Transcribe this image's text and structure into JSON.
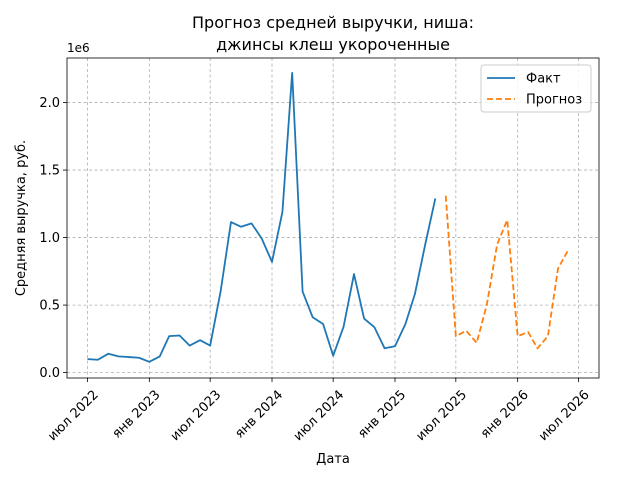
{
  "chart_data": {
    "type": "line",
    "title_lines": [
      "Прогноз средней выручки, ниша:",
      "джинсы клеш укороченные"
    ],
    "xlabel": "Дата",
    "ylabel": "Средняя выручка, руб.",
    "y_offset_label": "1e6",
    "ylim": [
      -0.04,
      2.33
    ],
    "y_ticks": [
      0.0,
      0.5,
      1.0,
      1.5,
      2.0
    ],
    "y_tick_labels": [
      "0.0",
      "0.5",
      "1.0",
      "1.5",
      "2.0"
    ],
    "x_range": [
      "2022-05-01",
      "2026-08-31"
    ],
    "x_ticks": [
      "2022-07-01",
      "2023-01-01",
      "2023-07-01",
      "2024-01-01",
      "2024-07-01",
      "2025-01-01",
      "2025-07-01",
      "2026-01-01",
      "2026-07-01"
    ],
    "x_tick_labels": [
      "июл 2022",
      "янв 2023",
      "июл 2023",
      "янв 2024",
      "июл 2024",
      "янв 2025",
      "июл 2025",
      "янв 2026",
      "июл 2026"
    ],
    "grid": true,
    "legend_position": "top-right",
    "series": [
      {
        "name": "Факт",
        "color": "#1f77b4",
        "style": "solid",
        "x": [
          "2022-07-01",
          "2022-08-01",
          "2022-09-01",
          "2022-10-01",
          "2022-11-01",
          "2022-12-01",
          "2023-01-01",
          "2023-02-01",
          "2023-03-01",
          "2023-04-01",
          "2023-05-01",
          "2023-06-01",
          "2023-07-01",
          "2023-08-01",
          "2023-09-01",
          "2023-10-01",
          "2023-11-01",
          "2023-12-01",
          "2024-01-01",
          "2024-02-01",
          "2024-03-01",
          "2024-04-01",
          "2024-05-01",
          "2024-06-01",
          "2024-07-01",
          "2024-08-01",
          "2024-09-01",
          "2024-10-01",
          "2024-11-01",
          "2024-12-01",
          "2025-01-01",
          "2025-02-01",
          "2025-03-01",
          "2025-04-01",
          "2025-05-01"
        ],
        "values": [
          0.1,
          0.095,
          0.14,
          0.12,
          0.115,
          0.11,
          0.08,
          0.12,
          0.27,
          0.275,
          0.2,
          0.24,
          0.2,
          0.6,
          1.115,
          1.08,
          1.105,
          0.995,
          0.82,
          1.19,
          2.22,
          0.6,
          0.41,
          0.36,
          0.125,
          0.34,
          0.73,
          0.4,
          0.335,
          0.18,
          0.195,
          0.36,
          0.58,
          0.95,
          1.29
        ]
      },
      {
        "name": "Прогноз",
        "color": "#ff7f0e",
        "style": "dashed",
        "x": [
          "2025-06-01",
          "2025-07-01",
          "2025-08-01",
          "2025-09-01",
          "2025-10-01",
          "2025-11-01",
          "2025-12-01",
          "2026-01-01",
          "2026-02-01",
          "2026-03-01",
          "2026-04-01",
          "2026-05-01",
          "2026-06-01"
        ],
        "values": [
          1.31,
          0.27,
          0.31,
          0.22,
          0.5,
          0.95,
          1.13,
          0.27,
          0.3,
          0.18,
          0.27,
          0.77,
          0.91
        ]
      }
    ]
  }
}
